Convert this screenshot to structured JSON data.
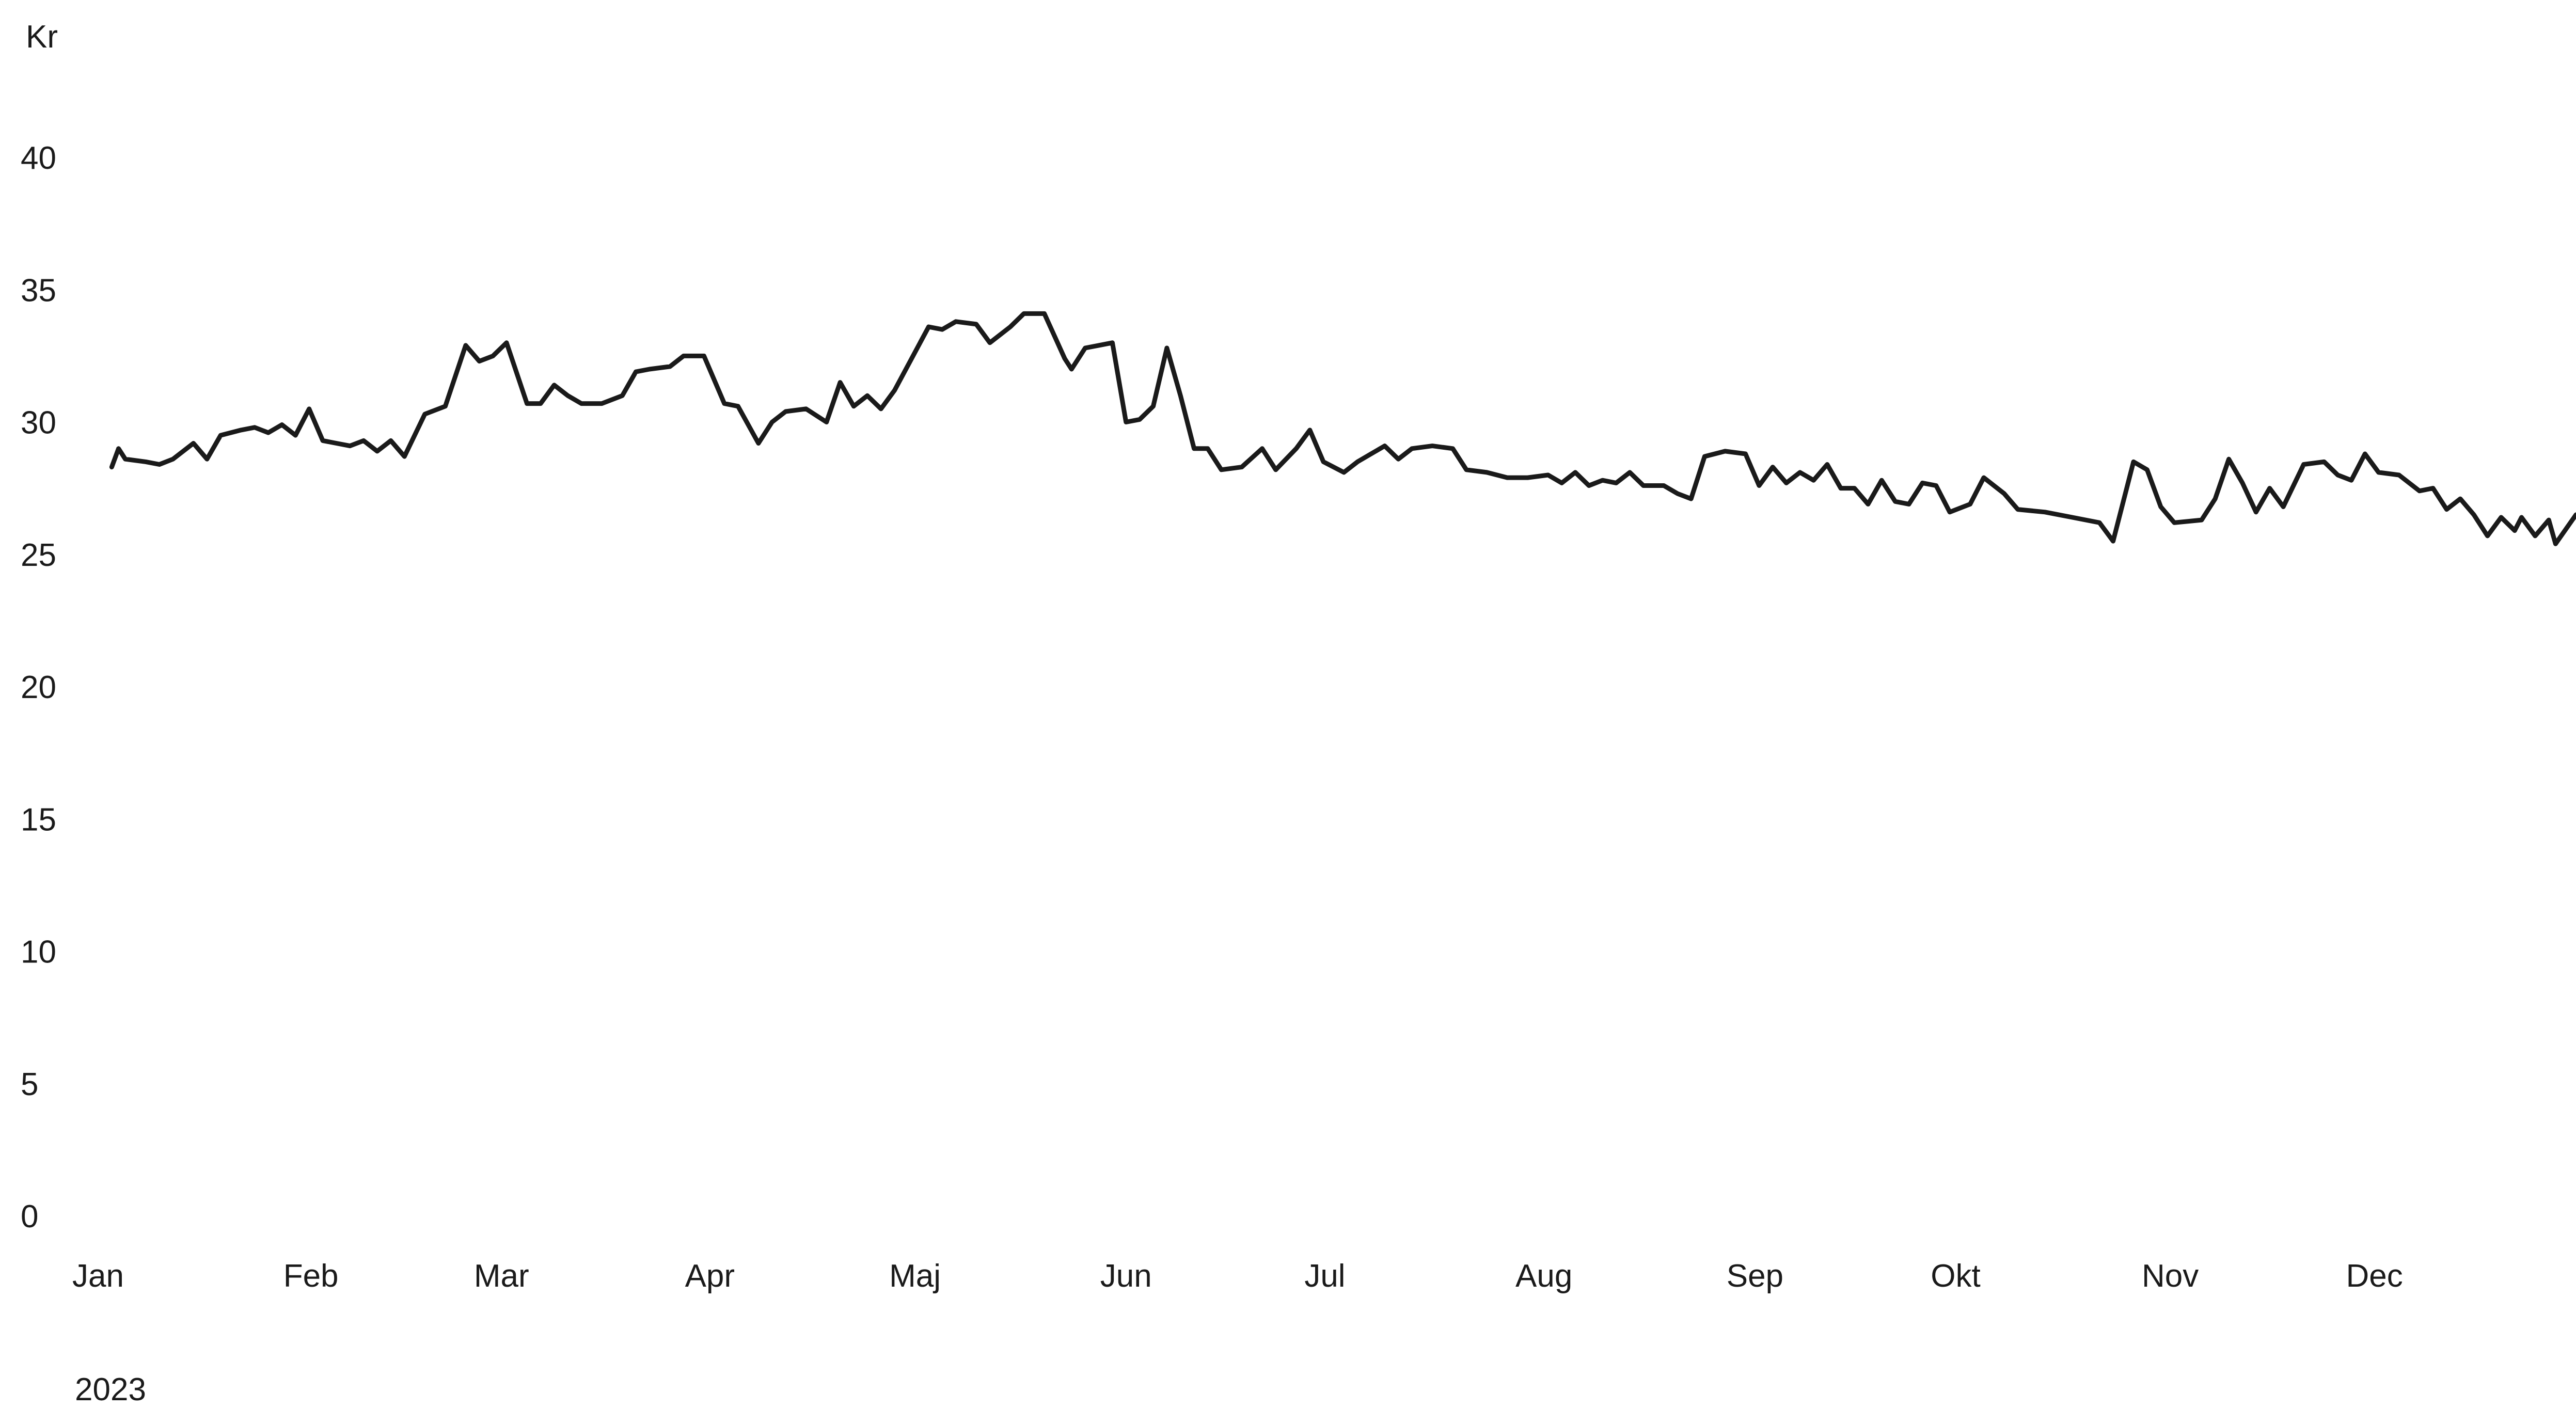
{
  "chart_data": {
    "type": "line",
    "title": "",
    "xlabel": "",
    "ylabel": "Kr",
    "year_label": "2023",
    "ylim": [
      0,
      40
    ],
    "yticks": [
      0,
      5,
      10,
      15,
      20,
      25,
      30,
      35,
      40
    ],
    "month_labels": [
      "Jan",
      "Feb",
      "Mar",
      "Apr",
      "Maj",
      "Jun",
      "Jul",
      "Aug",
      "Sep",
      "Okt",
      "Nov",
      "Dec"
    ],
    "month_starts": [
      "2023-01-01",
      "2023-02-01",
      "2023-03-01",
      "2023-04-01",
      "2023-05-01",
      "2023-06-01",
      "2023-07-01",
      "2023-08-01",
      "2023-09-01",
      "2023-10-01",
      "2023-11-01",
      "2023-12-01"
    ],
    "xlim": [
      "2023-01-01",
      "2023-12-31"
    ],
    "grid": false,
    "line_color": "#1a1a1a",
    "series": [
      {
        "points": [
          [
            "2023-01-03",
            28.3
          ],
          [
            "2023-01-04",
            29.0
          ],
          [
            "2023-01-05",
            28.6
          ],
          [
            "2023-01-08",
            28.5
          ],
          [
            "2023-01-10",
            28.4
          ],
          [
            "2023-01-12",
            28.6
          ],
          [
            "2023-01-15",
            29.2
          ],
          [
            "2023-01-17",
            28.6
          ],
          [
            "2023-01-19",
            29.5
          ],
          [
            "2023-01-22",
            29.7
          ],
          [
            "2023-01-24",
            29.8
          ],
          [
            "2023-01-26",
            29.6
          ],
          [
            "2023-01-28",
            29.9
          ],
          [
            "2023-01-30",
            29.5
          ],
          [
            "2023-02-01",
            30.5
          ],
          [
            "2023-02-03",
            29.3
          ],
          [
            "2023-02-05",
            29.2
          ],
          [
            "2023-02-07",
            29.1
          ],
          [
            "2023-02-09",
            29.3
          ],
          [
            "2023-02-11",
            28.9
          ],
          [
            "2023-02-13",
            29.3
          ],
          [
            "2023-02-15",
            28.7
          ],
          [
            "2023-02-18",
            30.3
          ],
          [
            "2023-02-21",
            30.6
          ],
          [
            "2023-02-24",
            32.9
          ],
          [
            "2023-02-26",
            32.3
          ],
          [
            "2023-02-28",
            32.5
          ],
          [
            "2023-03-02",
            33.0
          ],
          [
            "2023-03-05",
            30.7
          ],
          [
            "2023-03-07",
            30.7
          ],
          [
            "2023-03-09",
            31.4
          ],
          [
            "2023-03-11",
            31.0
          ],
          [
            "2023-03-13",
            30.7
          ],
          [
            "2023-03-16",
            30.7
          ],
          [
            "2023-03-19",
            31.0
          ],
          [
            "2023-03-21",
            31.9
          ],
          [
            "2023-03-23",
            32.0
          ],
          [
            "2023-03-26",
            32.1
          ],
          [
            "2023-03-28",
            32.5
          ],
          [
            "2023-03-31",
            32.5
          ],
          [
            "2023-04-03",
            30.7
          ],
          [
            "2023-04-05",
            30.6
          ],
          [
            "2023-04-08",
            29.2
          ],
          [
            "2023-04-10",
            30.0
          ],
          [
            "2023-04-12",
            30.4
          ],
          [
            "2023-04-15",
            30.5
          ],
          [
            "2023-04-18",
            30.0
          ],
          [
            "2023-04-20",
            31.5
          ],
          [
            "2023-04-22",
            30.6
          ],
          [
            "2023-04-24",
            31.0
          ],
          [
            "2023-04-26",
            30.5
          ],
          [
            "2023-04-28",
            31.2
          ],
          [
            "2023-05-03",
            33.6
          ],
          [
            "2023-05-05",
            33.5
          ],
          [
            "2023-05-07",
            33.8
          ],
          [
            "2023-05-10",
            33.7
          ],
          [
            "2023-05-12",
            33.0
          ],
          [
            "2023-05-15",
            33.6
          ],
          [
            "2023-05-17",
            34.1
          ],
          [
            "2023-05-20",
            34.1
          ],
          [
            "2023-05-23",
            32.4
          ],
          [
            "2023-05-24",
            32.0
          ],
          [
            "2023-05-26",
            32.8
          ],
          [
            "2023-05-28",
            32.9
          ],
          [
            "2023-05-30",
            33.0
          ],
          [
            "2023-06-01",
            30.0
          ],
          [
            "2023-06-03",
            30.1
          ],
          [
            "2023-06-05",
            30.6
          ],
          [
            "2023-06-07",
            32.8
          ],
          [
            "2023-06-09",
            31.0
          ],
          [
            "2023-06-11",
            29.0
          ],
          [
            "2023-06-13",
            29.0
          ],
          [
            "2023-06-15",
            28.2
          ],
          [
            "2023-06-18",
            28.3
          ],
          [
            "2023-06-21",
            29.0
          ],
          [
            "2023-06-23",
            28.2
          ],
          [
            "2023-06-26",
            29.0
          ],
          [
            "2023-06-28",
            29.7
          ],
          [
            "2023-06-30",
            28.5
          ],
          [
            "2023-07-03",
            28.1
          ],
          [
            "2023-07-05",
            28.5
          ],
          [
            "2023-07-07",
            28.8
          ],
          [
            "2023-07-09",
            29.1
          ],
          [
            "2023-07-11",
            28.6
          ],
          [
            "2023-07-13",
            29.0
          ],
          [
            "2023-07-16",
            29.1
          ],
          [
            "2023-07-19",
            29.0
          ],
          [
            "2023-07-21",
            28.2
          ],
          [
            "2023-07-24",
            28.1
          ],
          [
            "2023-07-27",
            27.9
          ],
          [
            "2023-07-30",
            27.9
          ],
          [
            "2023-08-02",
            28.0
          ],
          [
            "2023-08-04",
            27.7
          ],
          [
            "2023-08-06",
            28.1
          ],
          [
            "2023-08-08",
            27.6
          ],
          [
            "2023-08-10",
            27.8
          ],
          [
            "2023-08-12",
            27.7
          ],
          [
            "2023-08-14",
            28.1
          ],
          [
            "2023-08-16",
            27.6
          ],
          [
            "2023-08-19",
            27.6
          ],
          [
            "2023-08-21",
            27.3
          ],
          [
            "2023-08-23",
            27.1
          ],
          [
            "2023-08-25",
            28.7
          ],
          [
            "2023-08-28",
            28.9
          ],
          [
            "2023-08-31",
            28.8
          ],
          [
            "2023-09-02",
            27.6
          ],
          [
            "2023-09-04",
            28.3
          ],
          [
            "2023-09-06",
            27.7
          ],
          [
            "2023-09-08",
            28.1
          ],
          [
            "2023-09-10",
            27.8
          ],
          [
            "2023-09-12",
            28.4
          ],
          [
            "2023-09-14",
            27.5
          ],
          [
            "2023-09-16",
            27.5
          ],
          [
            "2023-09-18",
            26.9
          ],
          [
            "2023-09-20",
            27.8
          ],
          [
            "2023-09-22",
            27.0
          ],
          [
            "2023-09-24",
            26.9
          ],
          [
            "2023-09-26",
            27.7
          ],
          [
            "2023-09-28",
            27.6
          ],
          [
            "2023-09-30",
            26.6
          ],
          [
            "2023-10-03",
            26.9
          ],
          [
            "2023-10-05",
            27.9
          ],
          [
            "2023-10-08",
            27.3
          ],
          [
            "2023-10-10",
            26.7
          ],
          [
            "2023-10-14",
            26.6
          ],
          [
            "2023-10-18",
            26.4
          ],
          [
            "2023-10-22",
            26.2
          ],
          [
            "2023-10-24",
            25.5
          ],
          [
            "2023-10-27",
            28.5
          ],
          [
            "2023-10-29",
            28.2
          ],
          [
            "2023-10-31",
            26.8
          ],
          [
            "2023-11-02",
            26.2
          ],
          [
            "2023-11-06",
            26.3
          ],
          [
            "2023-11-08",
            27.1
          ],
          [
            "2023-11-10",
            28.6
          ],
          [
            "2023-11-12",
            27.7
          ],
          [
            "2023-11-14",
            26.6
          ],
          [
            "2023-11-16",
            27.5
          ],
          [
            "2023-11-18",
            26.8
          ],
          [
            "2023-11-21",
            28.4
          ],
          [
            "2023-11-24",
            28.5
          ],
          [
            "2023-11-26",
            28.0
          ],
          [
            "2023-11-28",
            27.8
          ],
          [
            "2023-11-30",
            28.8
          ],
          [
            "2023-12-02",
            28.1
          ],
          [
            "2023-12-05",
            28.0
          ],
          [
            "2023-12-08",
            27.4
          ],
          [
            "2023-12-10",
            27.5
          ],
          [
            "2023-12-12",
            26.7
          ],
          [
            "2023-12-14",
            27.1
          ],
          [
            "2023-12-16",
            26.5
          ],
          [
            "2023-12-18",
            25.7
          ],
          [
            "2023-12-20",
            26.4
          ],
          [
            "2023-12-22",
            25.9
          ],
          [
            "2023-12-23",
            26.4
          ],
          [
            "2023-12-25",
            25.7
          ],
          [
            "2023-12-27",
            26.3
          ],
          [
            "2023-12-28",
            25.4
          ],
          [
            "2023-12-31",
            26.5
          ]
        ]
      }
    ]
  }
}
